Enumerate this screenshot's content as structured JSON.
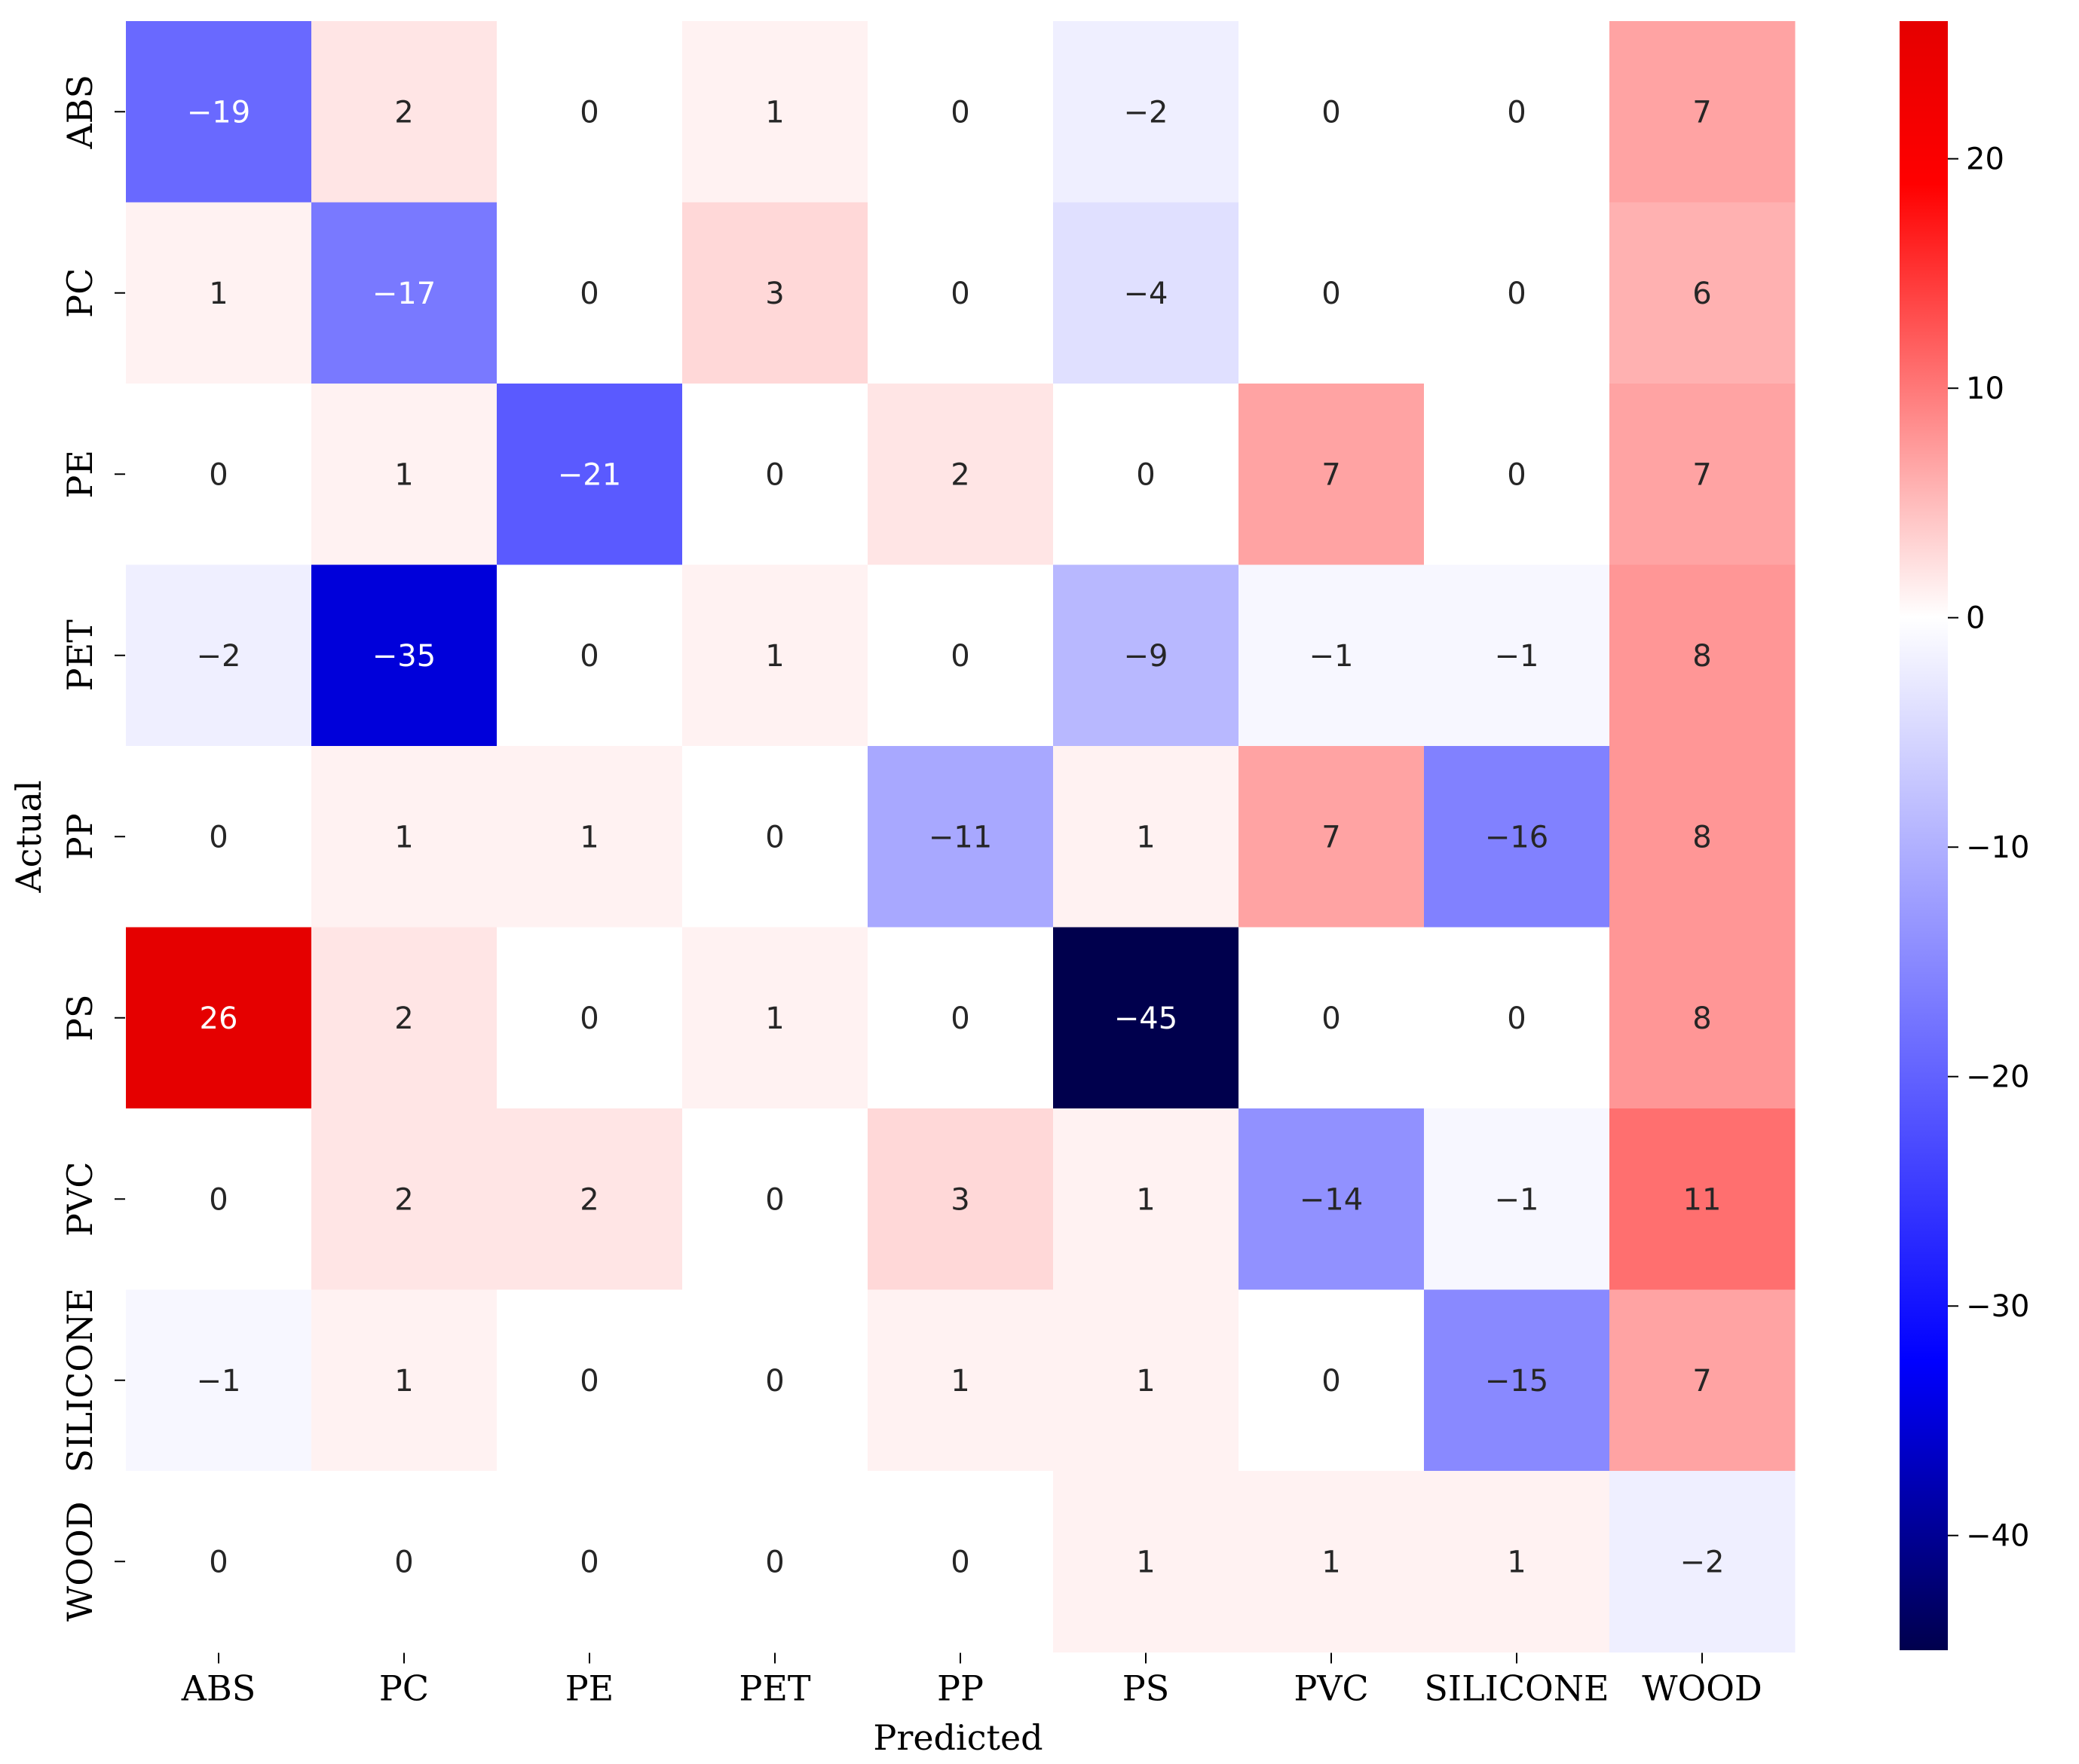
{
  "chart_data": {
    "type": "heatmap",
    "title": "",
    "xlabel": "Predicted",
    "ylabel": "Actual",
    "x_categories": [
      "ABS",
      "PC",
      "PE",
      "PET",
      "PP",
      "PS",
      "PVC",
      "SILICONE",
      "WOOD"
    ],
    "y_categories": [
      "ABS",
      "PC",
      "PE",
      "PET",
      "PP",
      "PS",
      "PVC",
      "SILICONE",
      "WOOD"
    ],
    "values": [
      [
        -19,
        2,
        0,
        1,
        0,
        -2,
        0,
        0,
        7
      ],
      [
        1,
        -17,
        0,
        3,
        0,
        -4,
        0,
        0,
        6
      ],
      [
        0,
        1,
        -21,
        0,
        2,
        0,
        7,
        0,
        7
      ],
      [
        -2,
        -35,
        0,
        1,
        0,
        -9,
        -1,
        -1,
        8
      ],
      [
        0,
        1,
        1,
        0,
        -11,
        1,
        7,
        -16,
        8
      ],
      [
        26,
        2,
        0,
        1,
        0,
        -45,
        0,
        0,
        8
      ],
      [
        0,
        2,
        2,
        0,
        3,
        1,
        -14,
        -1,
        11
      ],
      [
        -1,
        1,
        0,
        0,
        1,
        1,
        0,
        -15,
        7
      ],
      [
        0,
        0,
        0,
        0,
        0,
        1,
        1,
        1,
        -2
      ]
    ],
    "colormap": "seismic",
    "color_range": [
      -45,
      26
    ],
    "colorbar_ticks": [
      20,
      10,
      0,
      -10,
      -20,
      -30,
      -40
    ],
    "colorbar_labels": [
      "20",
      "10",
      "0",
      "−10",
      "−20",
      "−30",
      "−40"
    ]
  }
}
